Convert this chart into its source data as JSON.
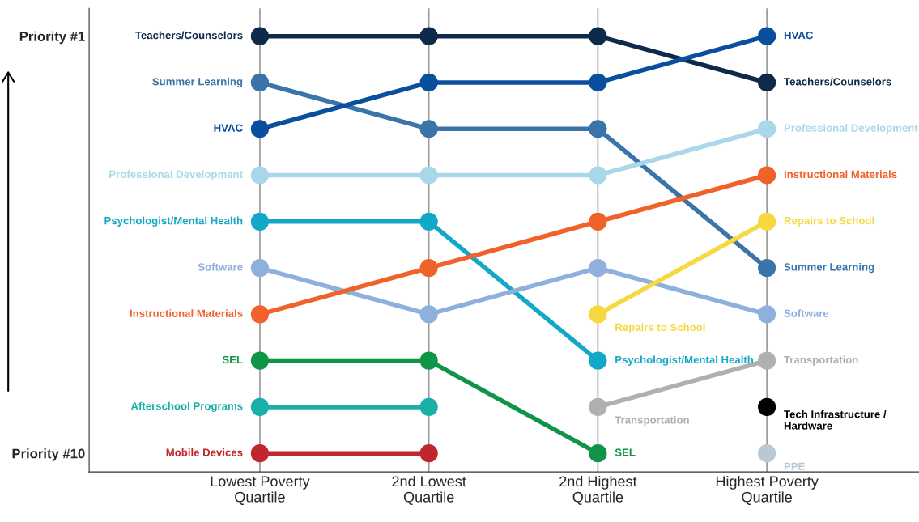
{
  "chart_data": {
    "type": "line",
    "categories": [
      "Lowest Poverty\nQuartile",
      "2nd Lowest\nQuartile",
      "2nd Highest\nQuartile",
      "Highest Poverty\nQuartile"
    ],
    "ylim": [
      10.4,
      0.4
    ],
    "yticks": [
      {
        "value": 1,
        "label": "Priority #1"
      },
      {
        "value": 10,
        "label": "Priority #10"
      }
    ],
    "grid": "x",
    "marker": "circle",
    "legend": false,
    "series": [
      {
        "name": "Teachers/Counselors",
        "color": "#0d2a4a",
        "values": [
          1,
          1,
          1,
          2
        ]
      },
      {
        "name": "Summer Learning",
        "color": "#3a74a8",
        "values": [
          2,
          3,
          3,
          6
        ]
      },
      {
        "name": "HVAC",
        "color": "#0a4f9e",
        "values": [
          3,
          2,
          2,
          1
        ]
      },
      {
        "name": "Professional Development",
        "color": "#a8d8ea",
        "values": [
          4,
          4,
          4,
          3
        ]
      },
      {
        "name": "Psychologist/Mental Health",
        "color": "#12a8c8",
        "values": [
          5,
          5,
          8,
          null
        ]
      },
      {
        "name": "Software",
        "color": "#8fb0dc",
        "values": [
          6,
          7,
          6,
          7
        ]
      },
      {
        "name": "Instructional Materials",
        "color": "#f0622a",
        "values": [
          7,
          6,
          5,
          4
        ]
      },
      {
        "name": "SEL",
        "color": "#109448",
        "values": [
          8,
          8,
          10,
          null
        ]
      },
      {
        "name": "Afterschool Programs",
        "color": "#1ab0a8",
        "values": [
          9,
          9,
          null,
          null
        ]
      },
      {
        "name": "Mobile Devices",
        "color": "#c0272d",
        "values": [
          10,
          10,
          null,
          null
        ]
      },
      {
        "name": "Repairs to School",
        "color": "#f8d840",
        "values": [
          null,
          null,
          7,
          5
        ]
      },
      {
        "name": "Transportation",
        "color": "#b0b0b0",
        "values": [
          null,
          null,
          9,
          8
        ]
      },
      {
        "name": "Tech Infrastructure / Hardware",
        "color": "#000000",
        "values": [
          null,
          null,
          null,
          9
        ]
      },
      {
        "name": "PPE",
        "color": "#b8c8d4",
        "values": [
          null,
          null,
          null,
          10
        ]
      }
    ]
  }
}
